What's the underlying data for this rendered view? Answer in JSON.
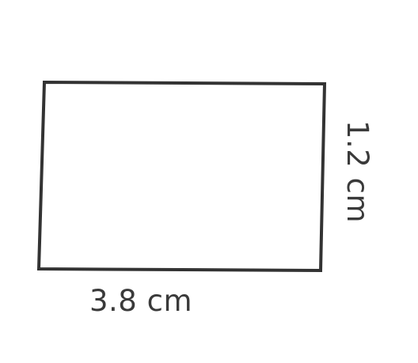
{
  "diagram": {
    "shape": "rectangle",
    "width_label": "3.8 cm",
    "height_label": "1.2 cm",
    "stroke_color": "#333333",
    "text_color": "#3a3a3a"
  }
}
